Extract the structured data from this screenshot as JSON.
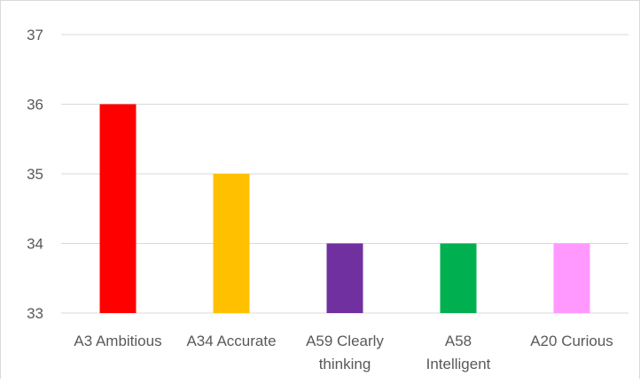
{
  "chart_data": {
    "type": "bar",
    "categories": [
      [
        "A3 Ambitious"
      ],
      [
        "A34 Accurate"
      ],
      [
        "A59 Clearly",
        "thinking"
      ],
      [
        "A58",
        "Intelligent"
      ],
      [
        "A20 Curious"
      ]
    ],
    "values": [
      36,
      35,
      34,
      34,
      34
    ],
    "colors": [
      "#ff0000",
      "#ffc000",
      "#7030a0",
      "#00b050",
      "#ff99ff"
    ],
    "ylim": [
      33,
      37
    ],
    "yticks": [
      "33",
      "34",
      "35",
      "36",
      "37"
    ],
    "grid": true,
    "gridline_color": "#d9d9d9",
    "title": "",
    "xlabel": "",
    "ylabel": "",
    "legend": "none"
  }
}
